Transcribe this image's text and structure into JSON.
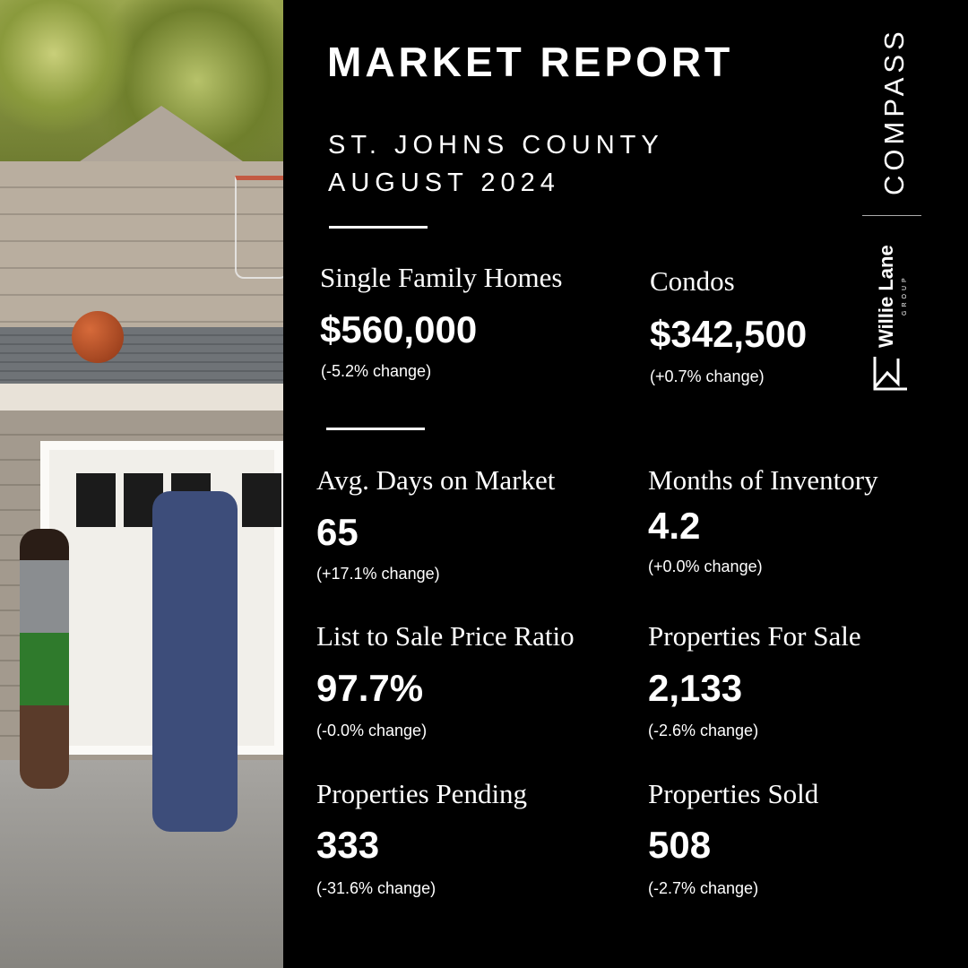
{
  "header": {
    "title": "MARKET REPORT",
    "county": "ST. JOHNS COUNTY",
    "period": "AUGUST 2024"
  },
  "branding": {
    "brokerage": "COMPASS",
    "team": "Willie Lane",
    "team_sub": "GROUP"
  },
  "photo": {
    "subject": "family-basketball-driveway"
  },
  "prices": [
    {
      "label": "Single Family Homes",
      "value": "$560,000",
      "change": "(-5.2% change)"
    },
    {
      "label": "Condos",
      "value": "$342,500",
      "change": "(+0.7% change)"
    }
  ],
  "stats": [
    {
      "label": "Avg. Days on Market",
      "value": "65",
      "change": "(+17.1% change)"
    },
    {
      "label": "Months of Inventory",
      "value": "4.2",
      "change": "(+0.0% change)"
    },
    {
      "label": "List to Sale Price Ratio",
      "value": "97.7%",
      "change": "(-0.0% change)"
    },
    {
      "label": "Properties For Sale",
      "value": "2,133",
      "change": "(-2.6% change)"
    },
    {
      "label": "Properties Pending",
      "value": "333",
      "change": "(-31.6% change)"
    },
    {
      "label": "Properties Sold",
      "value": "508",
      "change": "(-2.7% change)"
    }
  ]
}
